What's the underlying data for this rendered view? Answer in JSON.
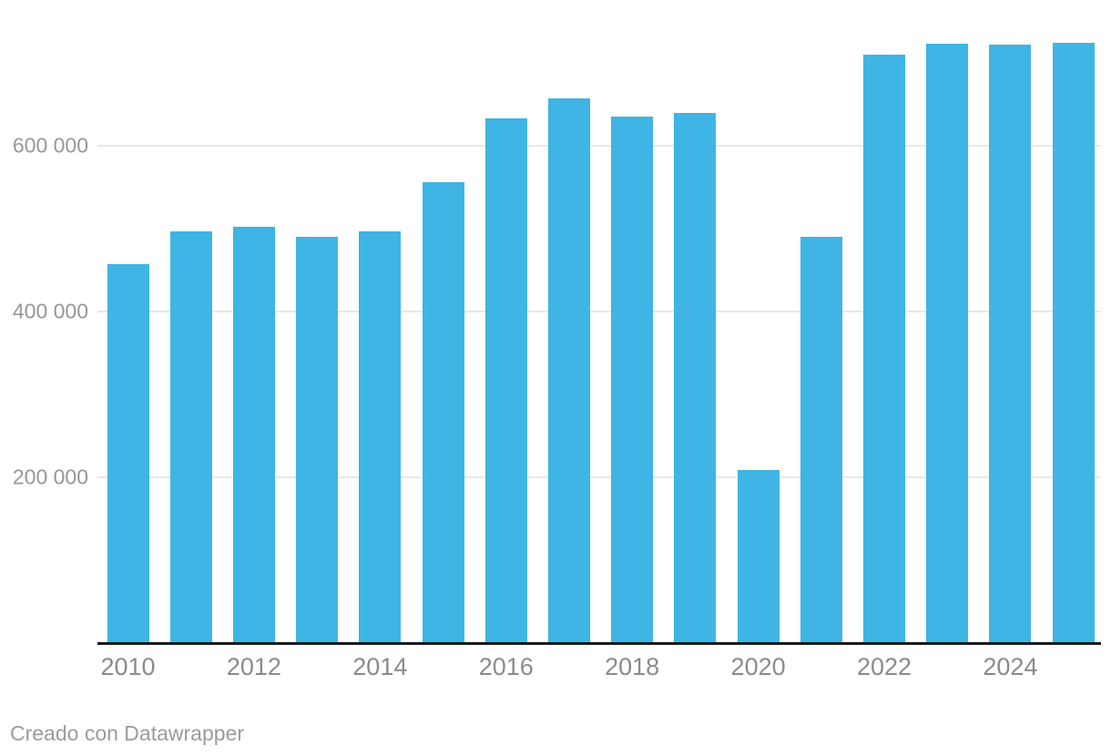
{
  "chart_data": {
    "type": "bar",
    "categories": [
      "2010",
      "2011",
      "2012",
      "2013",
      "2014",
      "2015",
      "2016",
      "2017",
      "2018",
      "2019",
      "2020",
      "2021",
      "2022",
      "2023",
      "2024",
      "2025"
    ],
    "values": [
      456000,
      496000,
      501000,
      489000,
      496000,
      555000,
      632000,
      656000,
      634000,
      639000,
      208000,
      489000,
      709000,
      722000,
      721000,
      723000
    ],
    "title": "",
    "xlabel": "",
    "ylabel": "",
    "ylim": [
      0,
      760000
    ],
    "yticks": [
      200000,
      400000,
      600000
    ],
    "ytick_labels": [
      "200 000",
      "400 000",
      "600 000"
    ],
    "xtick_labels_shown": [
      "2010",
      "2012",
      "2014",
      "2016",
      "2018",
      "2020",
      "2022",
      "2024"
    ],
    "grid": "horizontal",
    "legend": null,
    "bar_color": "#3eb5e4",
    "axis_color": "#1a1a1a",
    "gridline_color": "#e8e8e8",
    "y_tick_label_color": "#979797",
    "x_tick_label_color": "#8b8b8b",
    "footer_color": "#9b9b9b",
    "footer": "Creado con Datawrapper"
  }
}
